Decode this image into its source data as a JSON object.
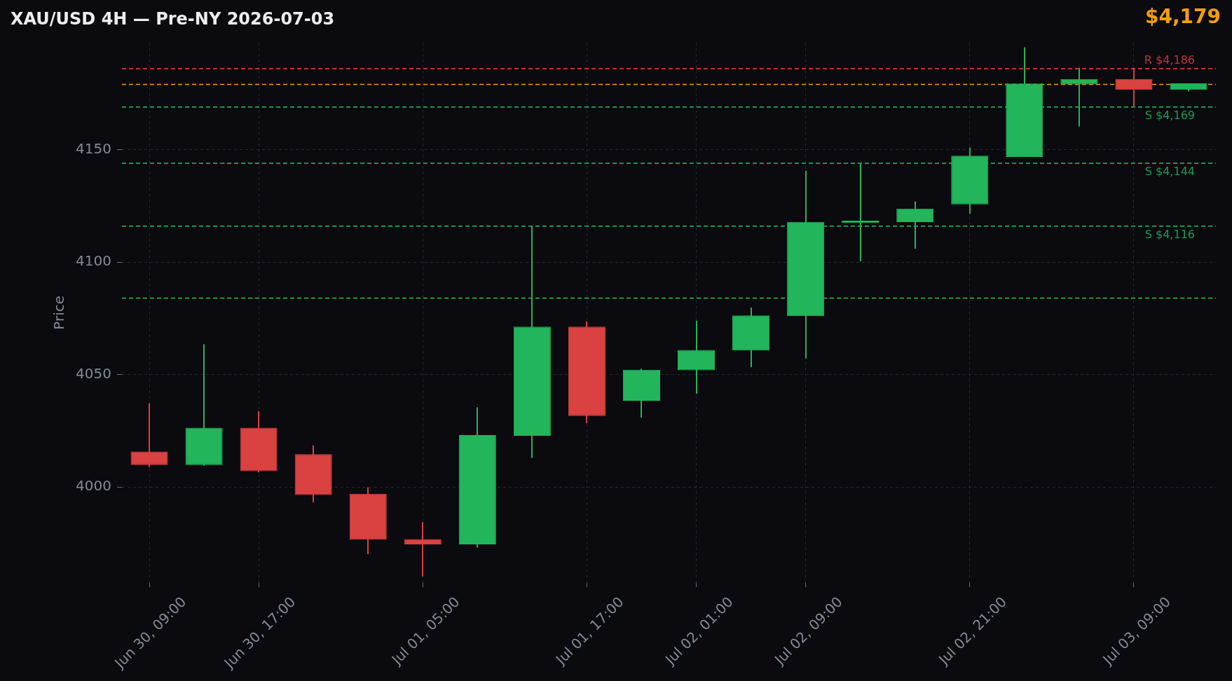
{
  "chart_data": {
    "type": "candlestick",
    "title": "XAU/USD 4H — Pre-NY 2026-07-03",
    "ylabel": "Price",
    "categories": [
      "Jun 30, 09:00",
      null,
      "Jun 30, 17:00",
      null,
      null,
      "Jul 01, 05:00",
      null,
      null,
      "Jul 01, 17:00",
      null,
      "Jul 02, 01:00",
      null,
      "Jul 02, 09:00",
      null,
      null,
      "Jul 02, 21:00",
      null,
      null,
      "Jul 03, 09:00",
      null
    ],
    "ohlc": [
      [
        4015.8,
        4037.3,
        4008.9,
        4009.8
      ],
      [
        4009.8,
        4063.5,
        4009.5,
        4026.4
      ],
      [
        4026.4,
        4033.7,
        4006.5,
        4007.1
      ],
      [
        4014.6,
        4018.5,
        3993.2,
        3996.5
      ],
      [
        3997.0,
        3999.9,
        3970.2,
        3976.6
      ],
      [
        3976.9,
        3984.4,
        3960.3,
        3974.5
      ],
      [
        3974.5,
        4035.5,
        3973.1,
        4023.1
      ],
      [
        4022.8,
        4115.9,
        4012.9,
        4071.3
      ],
      [
        4071.3,
        4073.7,
        4028.4,
        4031.6
      ],
      [
        4038.4,
        4052.6,
        4030.9,
        4052.2
      ],
      [
        4051.9,
        4074.0,
        4041.5,
        4061.0
      ],
      [
        4060.7,
        4079.8,
        4053.3,
        4076.3
      ],
      [
        4076.0,
        4140.6,
        4057.2,
        4117.9
      ],
      [
        4117.4,
        4143.7,
        4100.4,
        4118.4
      ],
      [
        4117.8,
        4127.0,
        4106.0,
        4123.8
      ],
      [
        4125.7,
        4151.0,
        4121.5,
        4147.3
      ],
      [
        4146.8,
        4195.5,
        4146.8,
        4179.4
      ],
      [
        4179.0,
        4186.4,
        4160.3,
        4181.4
      ],
      [
        4181.4,
        4186.4,
        4169.0,
        4176.6
      ],
      [
        4176.6,
        4179.5,
        4175.9,
        4179.5
      ]
    ],
    "colors": [
      "#da4141",
      "#22b55b",
      "#da4141",
      "#da4141",
      "#da4141",
      "#da4141",
      "#22b55b",
      "#22b55b",
      "#da4141",
      "#22b55b",
      "#22b55b",
      "#22b55b",
      "#22b55b",
      "#22b55b",
      "#22b55b",
      "#22b55b",
      "#22b55b",
      "#22b55b",
      "#da4141",
      "#22b55b"
    ],
    "ylim": [
      3957.4,
      4197.6
    ],
    "yticks": [
      4000,
      4050,
      4100,
      4150
    ],
    "grid": true,
    "ref_lines": [
      {
        "axis": "y",
        "value": 4186,
        "label": "R $4,186",
        "color": "#ef4444",
        "line_style": "dashed"
      },
      {
        "axis": "y",
        "value": 4179,
        "color": "#f59e0b",
        "line_style": "dashed"
      },
      {
        "axis": "y",
        "value": 4169,
        "label": "S $4,169",
        "color": "#22c55e",
        "line_style": "dashed"
      },
      {
        "axis": "y",
        "value": 4144,
        "label": "S $4,144",
        "color": "#22c55e",
        "line_style": "dashed"
      },
      {
        "axis": "y",
        "value": 4116,
        "label": "S $4,116",
        "color": "#22c55e",
        "line_style": "dashed"
      },
      {
        "axis": "y",
        "value": 4084,
        "color": "#22c55e",
        "line_style": "dashed"
      }
    ],
    "annotations": [
      "$4,179"
    ]
  }
}
